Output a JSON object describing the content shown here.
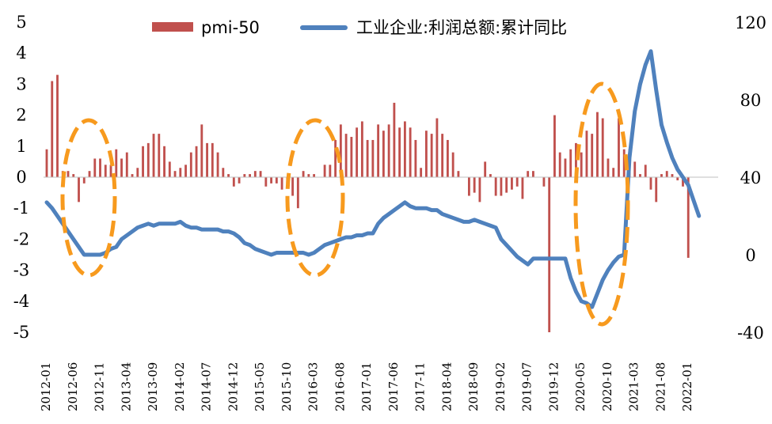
{
  "chart_data": {
    "type": "bar+line",
    "title": "",
    "legend": {
      "position": "top",
      "entries": [
        {
          "name": "pmi-50",
          "kind": "bar",
          "color": "#C0504D"
        },
        {
          "name": "工业企业:利润总额:累计同比",
          "kind": "line",
          "color": "#4F81BD"
        }
      ]
    },
    "left_axis": {
      "ylim": [
        -5,
        5
      ],
      "ticks": [
        "5",
        "4",
        "3",
        "2",
        "1",
        "0",
        "-1",
        "-2",
        "-3",
        "-4",
        "-5"
      ]
    },
    "right_axis": {
      "ylim": [
        -40,
        120
      ],
      "ticks": [
        "120",
        "80",
        "40",
        "0",
        "-40"
      ]
    },
    "x_tick_labels": [
      "2012-01",
      "2012-06",
      "2012-11",
      "2013-04",
      "2013-09",
      "2014-02",
      "2014-07",
      "2014-12",
      "2015-05",
      "2015-10",
      "2016-03",
      "2016-08",
      "2017-01",
      "2017-06",
      "2017-11",
      "2018-04",
      "2018-09",
      "2019-02",
      "2019-07",
      "2019-12",
      "2020-05",
      "2020-10",
      "2021-03",
      "2021-08",
      "2022-01"
    ],
    "months_count": 126,
    "series": [
      {
        "name": "pmi-50",
        "type": "bar",
        "axis": "left",
        "start": "2012-01",
        "values": [
          0.9,
          3.1,
          3.3,
          0.2,
          0.2,
          0.1,
          -0.8,
          -0.2,
          0.2,
          0.6,
          0.6,
          0.4,
          0.4,
          0.9,
          0.6,
          0.8,
          0.1,
          0.3,
          1.0,
          1.1,
          1.4,
          1.4,
          1.0,
          0.5,
          0.2,
          0.3,
          0.4,
          0.8,
          1.0,
          1.7,
          1.1,
          1.1,
          0.8,
          0.3,
          0.1,
          -0.3,
          -0.2,
          0.1,
          0.1,
          0.2,
          0.2,
          -0.3,
          -0.2,
          -0.2,
          -0.4,
          -0.2,
          -0.6,
          -1.0,
          0.2,
          0.1,
          0.1,
          0.0,
          0.4,
          0.4,
          1.2,
          1.7,
          1.4,
          1.3,
          1.6,
          1.8,
          1.2,
          1.2,
          1.7,
          1.5,
          1.7,
          2.4,
          1.6,
          1.8,
          1.6,
          1.2,
          0.3,
          1.5,
          1.4,
          1.9,
          1.4,
          1.2,
          0.8,
          0.2,
          0.0,
          -0.6,
          -0.5,
          -0.8,
          0.5,
          0.1,
          -0.6,
          -0.6,
          -0.5,
          -0.4,
          -0.3,
          -0.7,
          0.2,
          0.2,
          0.0,
          -0.3,
          -5.0,
          2.0,
          0.8,
          0.6,
          0.9,
          1.1,
          0.8,
          1.5,
          1.4,
          2.1,
          1.9,
          0.6,
          0.3,
          1.9,
          0.9,
          0.9,
          0.5,
          0.1,
          0.4,
          -0.4,
          -0.8,
          0.1,
          0.2,
          0.1,
          -0.1,
          -0.3,
          -2.6
        ]
      },
      {
        "name": "工业企业:利润总额:累计同比",
        "type": "line",
        "axis": "right",
        "start": "2012-01",
        "values": [
          27,
          24,
          20,
          16,
          12,
          8,
          4,
          0,
          0,
          0,
          0,
          1,
          3,
          4,
          8,
          10,
          12,
          14,
          15,
          16,
          15,
          16,
          16,
          16,
          16,
          17,
          15,
          14,
          14,
          13,
          13,
          13,
          13,
          12,
          12,
          11,
          9,
          6,
          5,
          3,
          2,
          1,
          0,
          1,
          1,
          1,
          1,
          1,
          1,
          0,
          1,
          3,
          5,
          6,
          7,
          8,
          9,
          9,
          10,
          10,
          11,
          11,
          16,
          19,
          21,
          23,
          25,
          27,
          25,
          24,
          24,
          24,
          23,
          23,
          21,
          20,
          19,
          18,
          17,
          17,
          18,
          17,
          16,
          15,
          14,
          8,
          5,
          2,
          -1,
          -3,
          -5,
          -2,
          -2,
          -2,
          -2,
          -2,
          -2,
          -2,
          -12,
          -19,
          -24,
          -25,
          -27,
          -20,
          -13,
          -8,
          -4,
          -1,
          0,
          50,
          74,
          88,
          98,
          105,
          85,
          67,
          58,
          50,
          44,
          40,
          36,
          28,
          20
        ]
      }
    ],
    "annotations": [
      "dashed orange ellipse around 2012-08",
      "dashed orange ellipse around 2016-01",
      "dashed orange ellipse around 2020-08"
    ]
  }
}
